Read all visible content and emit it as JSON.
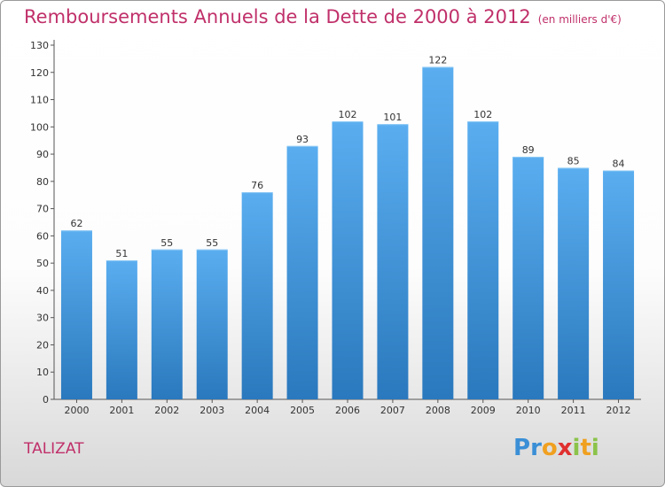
{
  "chart_data": {
    "type": "bar",
    "title": "Remboursements Annuels de la Dette de 2000 à 2012",
    "unit_note": "(en milliers d'€)",
    "categories": [
      "2000",
      "2001",
      "2002",
      "2003",
      "2004",
      "2005",
      "2006",
      "2007",
      "2008",
      "2009",
      "2010",
      "2011",
      "2012"
    ],
    "values": [
      62,
      51,
      55,
      55,
      76,
      93,
      102,
      101,
      122,
      102,
      89,
      85,
      84
    ],
    "yticks": [
      0,
      10,
      20,
      30,
      40,
      50,
      60,
      70,
      80,
      90,
      100,
      110,
      120,
      130
    ],
    "ylim": [
      0,
      130
    ],
    "grid": false,
    "bar_color": "#3a8fd6"
  },
  "commune": "TALIZAT",
  "logo": {
    "letters": [
      "P",
      "r",
      "o",
      "x",
      "i",
      "t",
      "i"
    ],
    "colors": [
      "#3a8fd6",
      "#3a8fd6",
      "#f0a020",
      "#e0302f",
      "#8bc34a",
      "#f0a020",
      "#8bc34a"
    ]
  }
}
